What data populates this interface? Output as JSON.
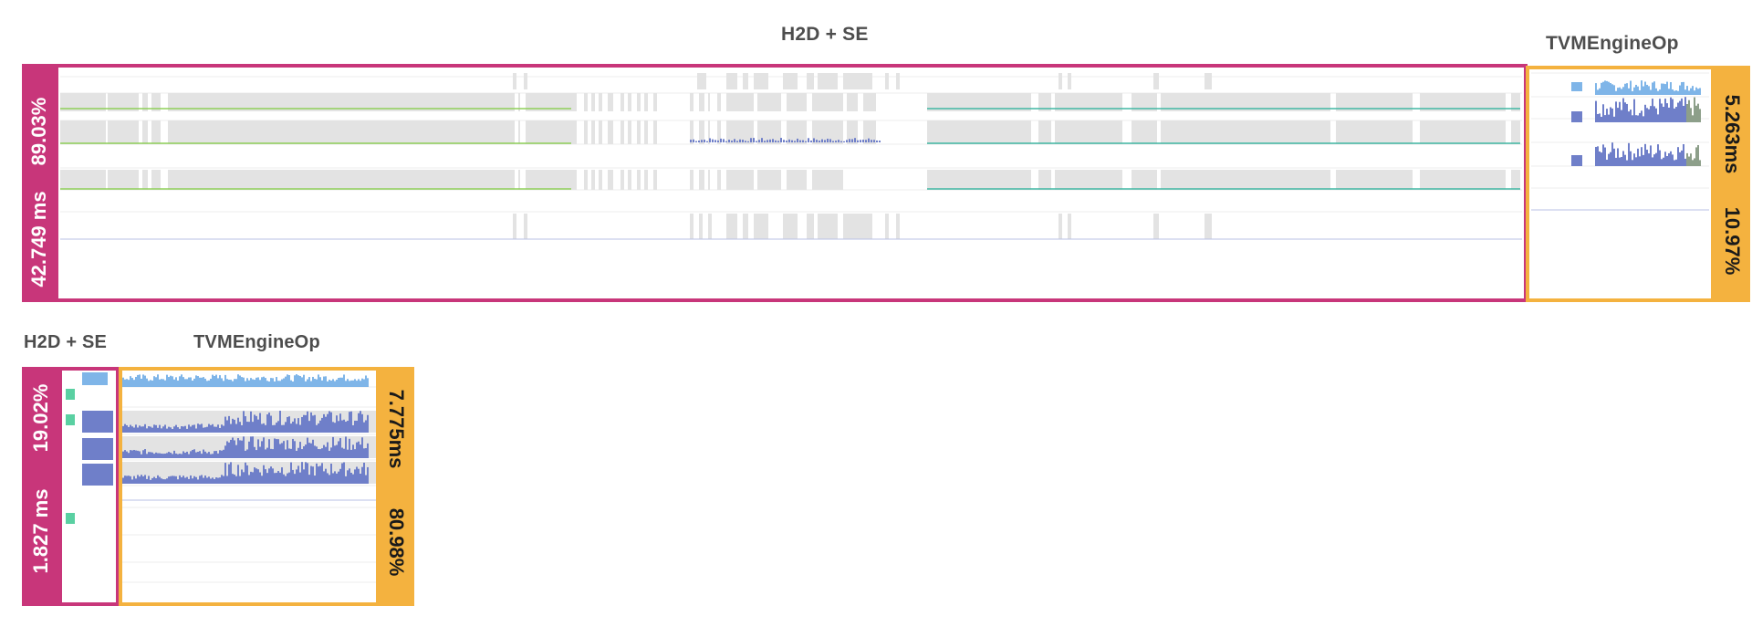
{
  "colors": {
    "h2d": "#c8367a",
    "tvm": "#f4b23f",
    "track_gray": "#e3e3e3",
    "line_green": "#8fd05a",
    "line_teal": "#41b7a3",
    "bar_light_blue": "#7fb5e8",
    "bar_dark_blue": "#6f7fc9",
    "kernel_green": "#5ad0a2"
  },
  "top_view": {
    "h2d_title": "H2D + SE",
    "tvm_title": "TVMEngineOp",
    "h2d_percent": "89.03%",
    "h2d_time": "42.749 ms",
    "tvm_time": "5.263ms",
    "tvm_percent": "10.97%"
  },
  "bottom_view": {
    "h2d_title": "H2D + SE",
    "tvm_title": "TVMEngineOp",
    "h2d_percent": "19.02%",
    "h2d_time": "1.827 ms",
    "tvm_time": "7.775ms",
    "tvm_percent": "80.98%"
  }
}
